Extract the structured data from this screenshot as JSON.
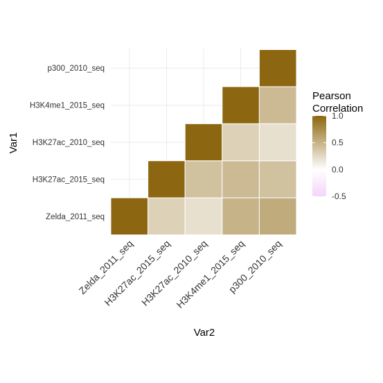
{
  "chart_data": {
    "type": "heatmap",
    "xlabel": "Var2",
    "ylabel": "Var1",
    "x_categories": [
      "Zelda_2011_seq",
      "H3K27ac_2015_seq",
      "H3K27ac_2010_seq",
      "H3K4me1_2015_seq",
      "p300_2010_seq"
    ],
    "y_categories": [
      "Zelda_2011_seq",
      "H3K27ac_2015_seq",
      "H3K27ac_2010_seq",
      "H3K4me1_2015_seq",
      "p300_2010_seq"
    ],
    "cells": [
      {
        "x": "Zelda_2011_seq",
        "y": "Zelda_2011_seq",
        "value": 1.0
      },
      {
        "x": "H3K27ac_2015_seq",
        "y": "Zelda_2011_seq",
        "value": 0.3
      },
      {
        "x": "H3K27ac_2010_seq",
        "y": "Zelda_2011_seq",
        "value": 0.2
      },
      {
        "x": "H3K4me1_2015_seq",
        "y": "Zelda_2011_seq",
        "value": 0.5
      },
      {
        "x": "p300_2010_seq",
        "y": "Zelda_2011_seq",
        "value": 0.55
      },
      {
        "x": "H3K27ac_2015_seq",
        "y": "H3K27ac_2015_seq",
        "value": 1.0
      },
      {
        "x": "H3K27ac_2010_seq",
        "y": "H3K27ac_2015_seq",
        "value": 0.4
      },
      {
        "x": "H3K4me1_2015_seq",
        "y": "H3K27ac_2015_seq",
        "value": 0.45
      },
      {
        "x": "p300_2010_seq",
        "y": "H3K27ac_2015_seq",
        "value": 0.4
      },
      {
        "x": "H3K27ac_2010_seq",
        "y": "H3K27ac_2010_seq",
        "value": 1.0
      },
      {
        "x": "H3K4me1_2015_seq",
        "y": "H3K27ac_2010_seq",
        "value": 0.3
      },
      {
        "x": "p300_2010_seq",
        "y": "H3K27ac_2010_seq",
        "value": 0.2
      },
      {
        "x": "H3K4me1_2015_seq",
        "y": "H3K4me1_2015_seq",
        "value": 1.0
      },
      {
        "x": "p300_2010_seq",
        "y": "H3K4me1_2015_seq",
        "value": 0.45
      },
      {
        "x": "p300_2010_seq",
        "y": "p300_2010_seq",
        "value": 1.0
      }
    ],
    "legend": {
      "title_lines": [
        "Pearson",
        "Correlation"
      ],
      "breaks": [
        1.0,
        0.5,
        0.0,
        -0.5
      ],
      "break_labels": [
        "1.0",
        "0.5",
        "0.0",
        "-0.5"
      ],
      "range": [
        -0.5,
        1.0
      ],
      "placement": "right"
    },
    "colors": {
      "high": "#8c6610",
      "mid": "#ffffff",
      "low": "#e9a8f5",
      "cell_border": "#ffffff",
      "grid": "#ebebeb"
    },
    "grid": true
  }
}
